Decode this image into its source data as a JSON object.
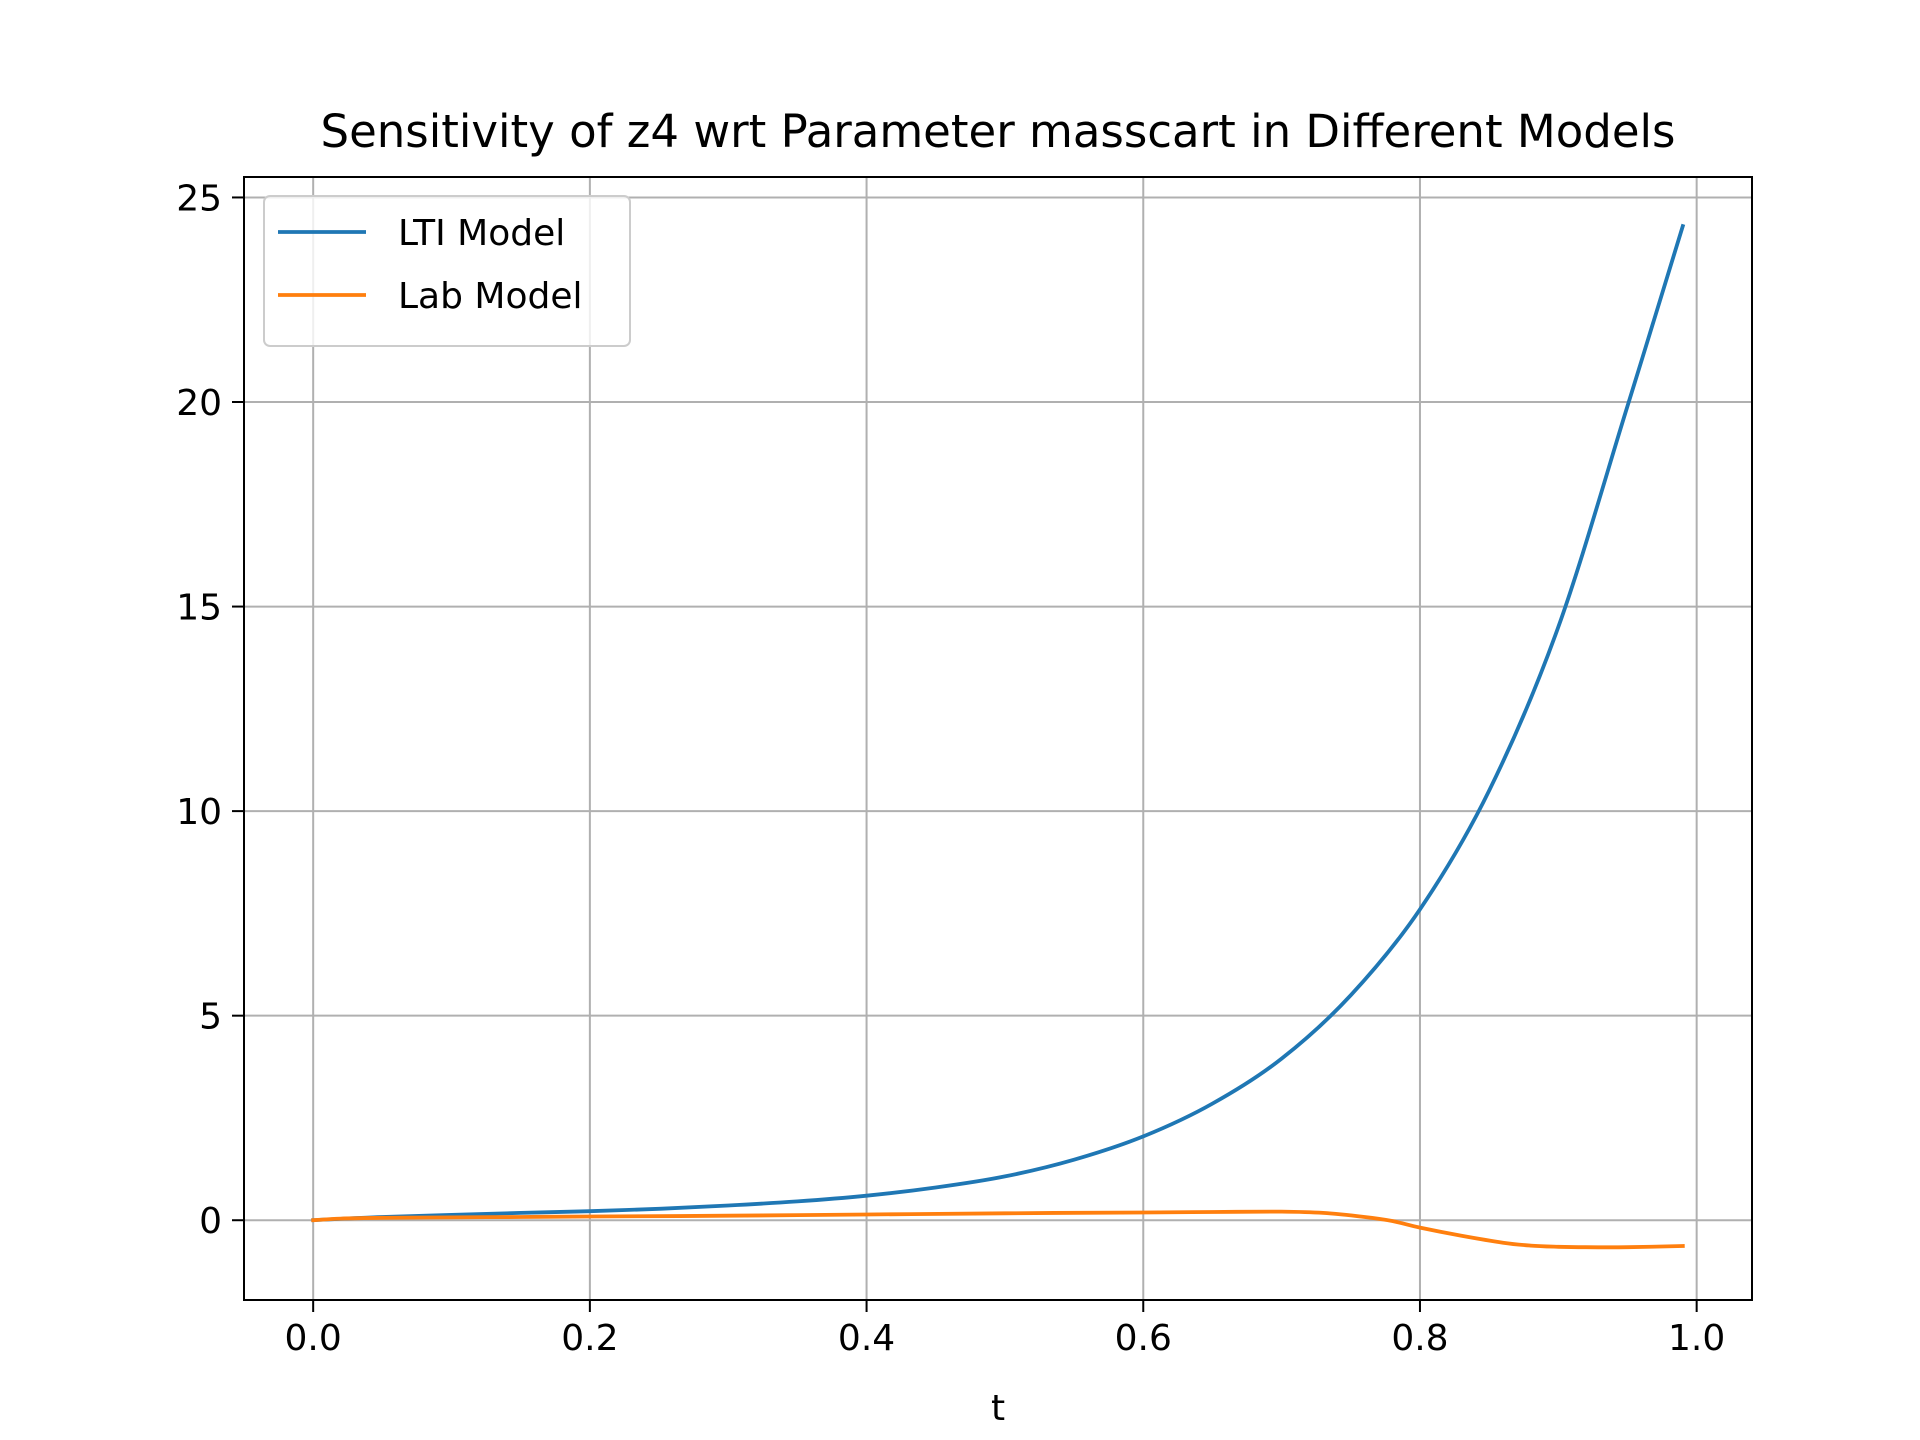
{
  "chart_data": {
    "type": "line",
    "title": "Sensitivity of z4 wrt Parameter masscart in Different Models",
    "xlabel": "t",
    "ylabel": "",
    "xlim": [
      -0.05,
      1.04
    ],
    "ylim": [
      -1.95,
      25.5
    ],
    "xticks": [
      0.0,
      0.2,
      0.4,
      0.6,
      0.8,
      1.0
    ],
    "xtick_labels": [
      "0.0",
      "0.2",
      "0.4",
      "0.6",
      "0.8",
      "1.0"
    ],
    "yticks": [
      0,
      5,
      10,
      15,
      20,
      25
    ],
    "ytick_labels": [
      "0",
      "5",
      "10",
      "15",
      "20",
      "25"
    ],
    "grid": true,
    "legend_position": "top-left",
    "series": [
      {
        "name": "LTI Model",
        "color": "#1f77b4",
        "x": [
          0.0,
          0.05,
          0.1,
          0.15,
          0.2,
          0.25,
          0.3,
          0.35,
          0.4,
          0.45,
          0.5,
          0.55,
          0.6,
          0.65,
          0.7,
          0.75,
          0.8,
          0.85,
          0.9,
          0.95,
          0.99
        ],
        "y": [
          0.0,
          0.08,
          0.13,
          0.18,
          0.22,
          0.28,
          0.36,
          0.46,
          0.6,
          0.8,
          1.07,
          1.48,
          2.05,
          2.85,
          3.95,
          5.5,
          7.6,
          10.5,
          14.5,
          19.9,
          24.3
        ]
      },
      {
        "name": "Lab Model",
        "color": "#ff7f0e",
        "x": [
          0.0,
          0.02,
          0.05,
          0.1,
          0.15,
          0.2,
          0.3,
          0.4,
          0.5,
          0.6,
          0.65,
          0.7,
          0.73,
          0.76,
          0.78,
          0.8,
          0.83,
          0.86,
          0.88,
          0.9,
          0.92,
          0.95,
          0.99
        ],
        "y": [
          0.0,
          0.04,
          0.06,
          0.07,
          0.08,
          0.09,
          0.11,
          0.14,
          0.17,
          0.19,
          0.2,
          0.21,
          0.18,
          0.08,
          -0.02,
          -0.18,
          -0.38,
          -0.55,
          -0.62,
          -0.65,
          -0.66,
          -0.66,
          -0.63
        ]
      }
    ]
  }
}
